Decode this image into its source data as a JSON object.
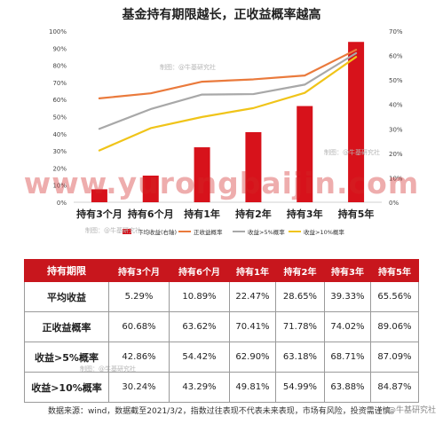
{
  "page_title": "基金持有期限越长，正收益概率越高",
  "watermark_text": "制图：@牛基研究社",
  "banner_text": "www.yurongbaijin.com",
  "chart_data": {
    "type": "bar",
    "title": "基金持有期限越长，正收益概率越高",
    "categories": [
      "持有3个月",
      "持有6个月",
      "持有1年",
      "持有2年",
      "持有3年",
      "持有5年"
    ],
    "bar_series": {
      "name": "平均收益(右轴)",
      "axis": "right",
      "color": "#d7121b",
      "values": [
        5.29,
        10.89,
        22.47,
        28.65,
        39.33,
        65.56
      ]
    },
    "line_series": [
      {
        "name": "正收益概率",
        "axis": "left",
        "color": "#ea7a3c",
        "values": [
          60.68,
          63.62,
          70.41,
          71.78,
          74.02,
          89.06
        ]
      },
      {
        "name": "收益>5%概率",
        "axis": "left",
        "color": "#a8a8a8",
        "values": [
          42.86,
          54.42,
          62.9,
          63.18,
          68.71,
          87.09
        ]
      },
      {
        "name": "收益>10%概率",
        "axis": "left",
        "color": "#f0c419",
        "values": [
          30.24,
          43.29,
          49.81,
          54.99,
          63.88,
          84.87
        ]
      }
    ],
    "left_axis": {
      "ticks": [
        "0%",
        "10%",
        "20%",
        "30%",
        "40%",
        "50%",
        "60%",
        "70%",
        "80%",
        "90%",
        "100%"
      ],
      "ylim": [
        0,
        100
      ]
    },
    "right_axis": {
      "ticks": [
        "0%",
        "10%",
        "20%",
        "30%",
        "40%",
        "50%",
        "60%",
        "70%"
      ],
      "ylim": [
        0,
        70
      ]
    },
    "legend": {
      "placement": "bottom",
      "items": [
        {
          "label": "平均收益(右轴)",
          "color": "#d7121b",
          "kind": "box"
        },
        {
          "label": "正收益概率",
          "color": "#ea7a3c",
          "kind": "line"
        },
        {
          "label": "收益>5%概率",
          "color": "#a8a8a8",
          "kind": "line"
        },
        {
          "label": "收益>10%概率",
          "color": "#f0c419",
          "kind": "line"
        }
      ]
    },
    "grid": false
  },
  "table": {
    "header": [
      "持有期限",
      "持有3个月",
      "持有6个月",
      "持有1年",
      "持有2年",
      "持有3年",
      "持有5年"
    ],
    "rows": [
      {
        "label": "平均收益",
        "values": [
          "5.29%",
          "10.89%",
          "22.47%",
          "28.65%",
          "39.33%",
          "65.56%"
        ]
      },
      {
        "label": "正收益概率",
        "values": [
          "60.68%",
          "63.62%",
          "70.41%",
          "71.78%",
          "74.02%",
          "89.06%"
        ]
      },
      {
        "label": "收益>5%概率",
        "values": [
          "42.86%",
          "54.42%",
          "62.90%",
          "63.18%",
          "68.71%",
          "87.09%"
        ]
      },
      {
        "label": "收益>10%概率",
        "values": [
          "30.24%",
          "43.29%",
          "49.81%",
          "54.99%",
          "63.88%",
          "84.87%"
        ]
      }
    ]
  },
  "source_note": "数据来源：wind，数据截至2021/3/2，指数过往表现不代表未来表现，市场有风险，投资需谨慎。",
  "weibo_mark": "@牛基研究社"
}
